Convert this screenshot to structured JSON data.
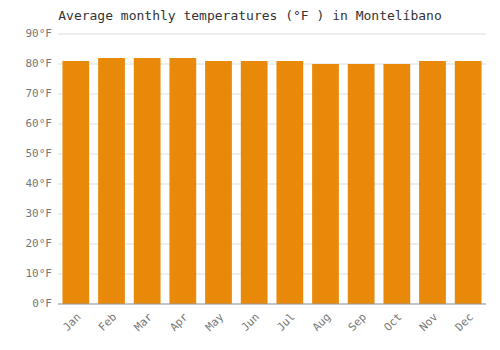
{
  "chart_data": {
    "type": "bar",
    "title": "Average monthly temperatures (°F ) in Montelíbano",
    "categories": [
      "Jan",
      "Feb",
      "Mar",
      "Apr",
      "May",
      "Jun",
      "Jul",
      "Aug",
      "Sep",
      "Oct",
      "Nov",
      "Dec"
    ],
    "values": [
      81,
      82,
      82,
      82,
      81,
      81,
      81,
      80,
      80,
      80,
      81,
      81
    ],
    "color": "#E8890A",
    "ylim": [
      0,
      90
    ],
    "yticks": [
      {
        "value": 0,
        "label": "0°F"
      },
      {
        "value": 10,
        "label": "10°F"
      },
      {
        "value": 20,
        "label": "20°F"
      },
      {
        "value": 30,
        "label": "30°F"
      },
      {
        "value": 40,
        "label": "40°F"
      },
      {
        "value": 50,
        "label": "50°F"
      },
      {
        "value": 60,
        "label": "60°F"
      },
      {
        "value": 70,
        "label": "70°F"
      },
      {
        "value": 80,
        "label": "80°F"
      },
      {
        "value": 90,
        "label": "90°F"
      }
    ],
    "grid": true
  }
}
